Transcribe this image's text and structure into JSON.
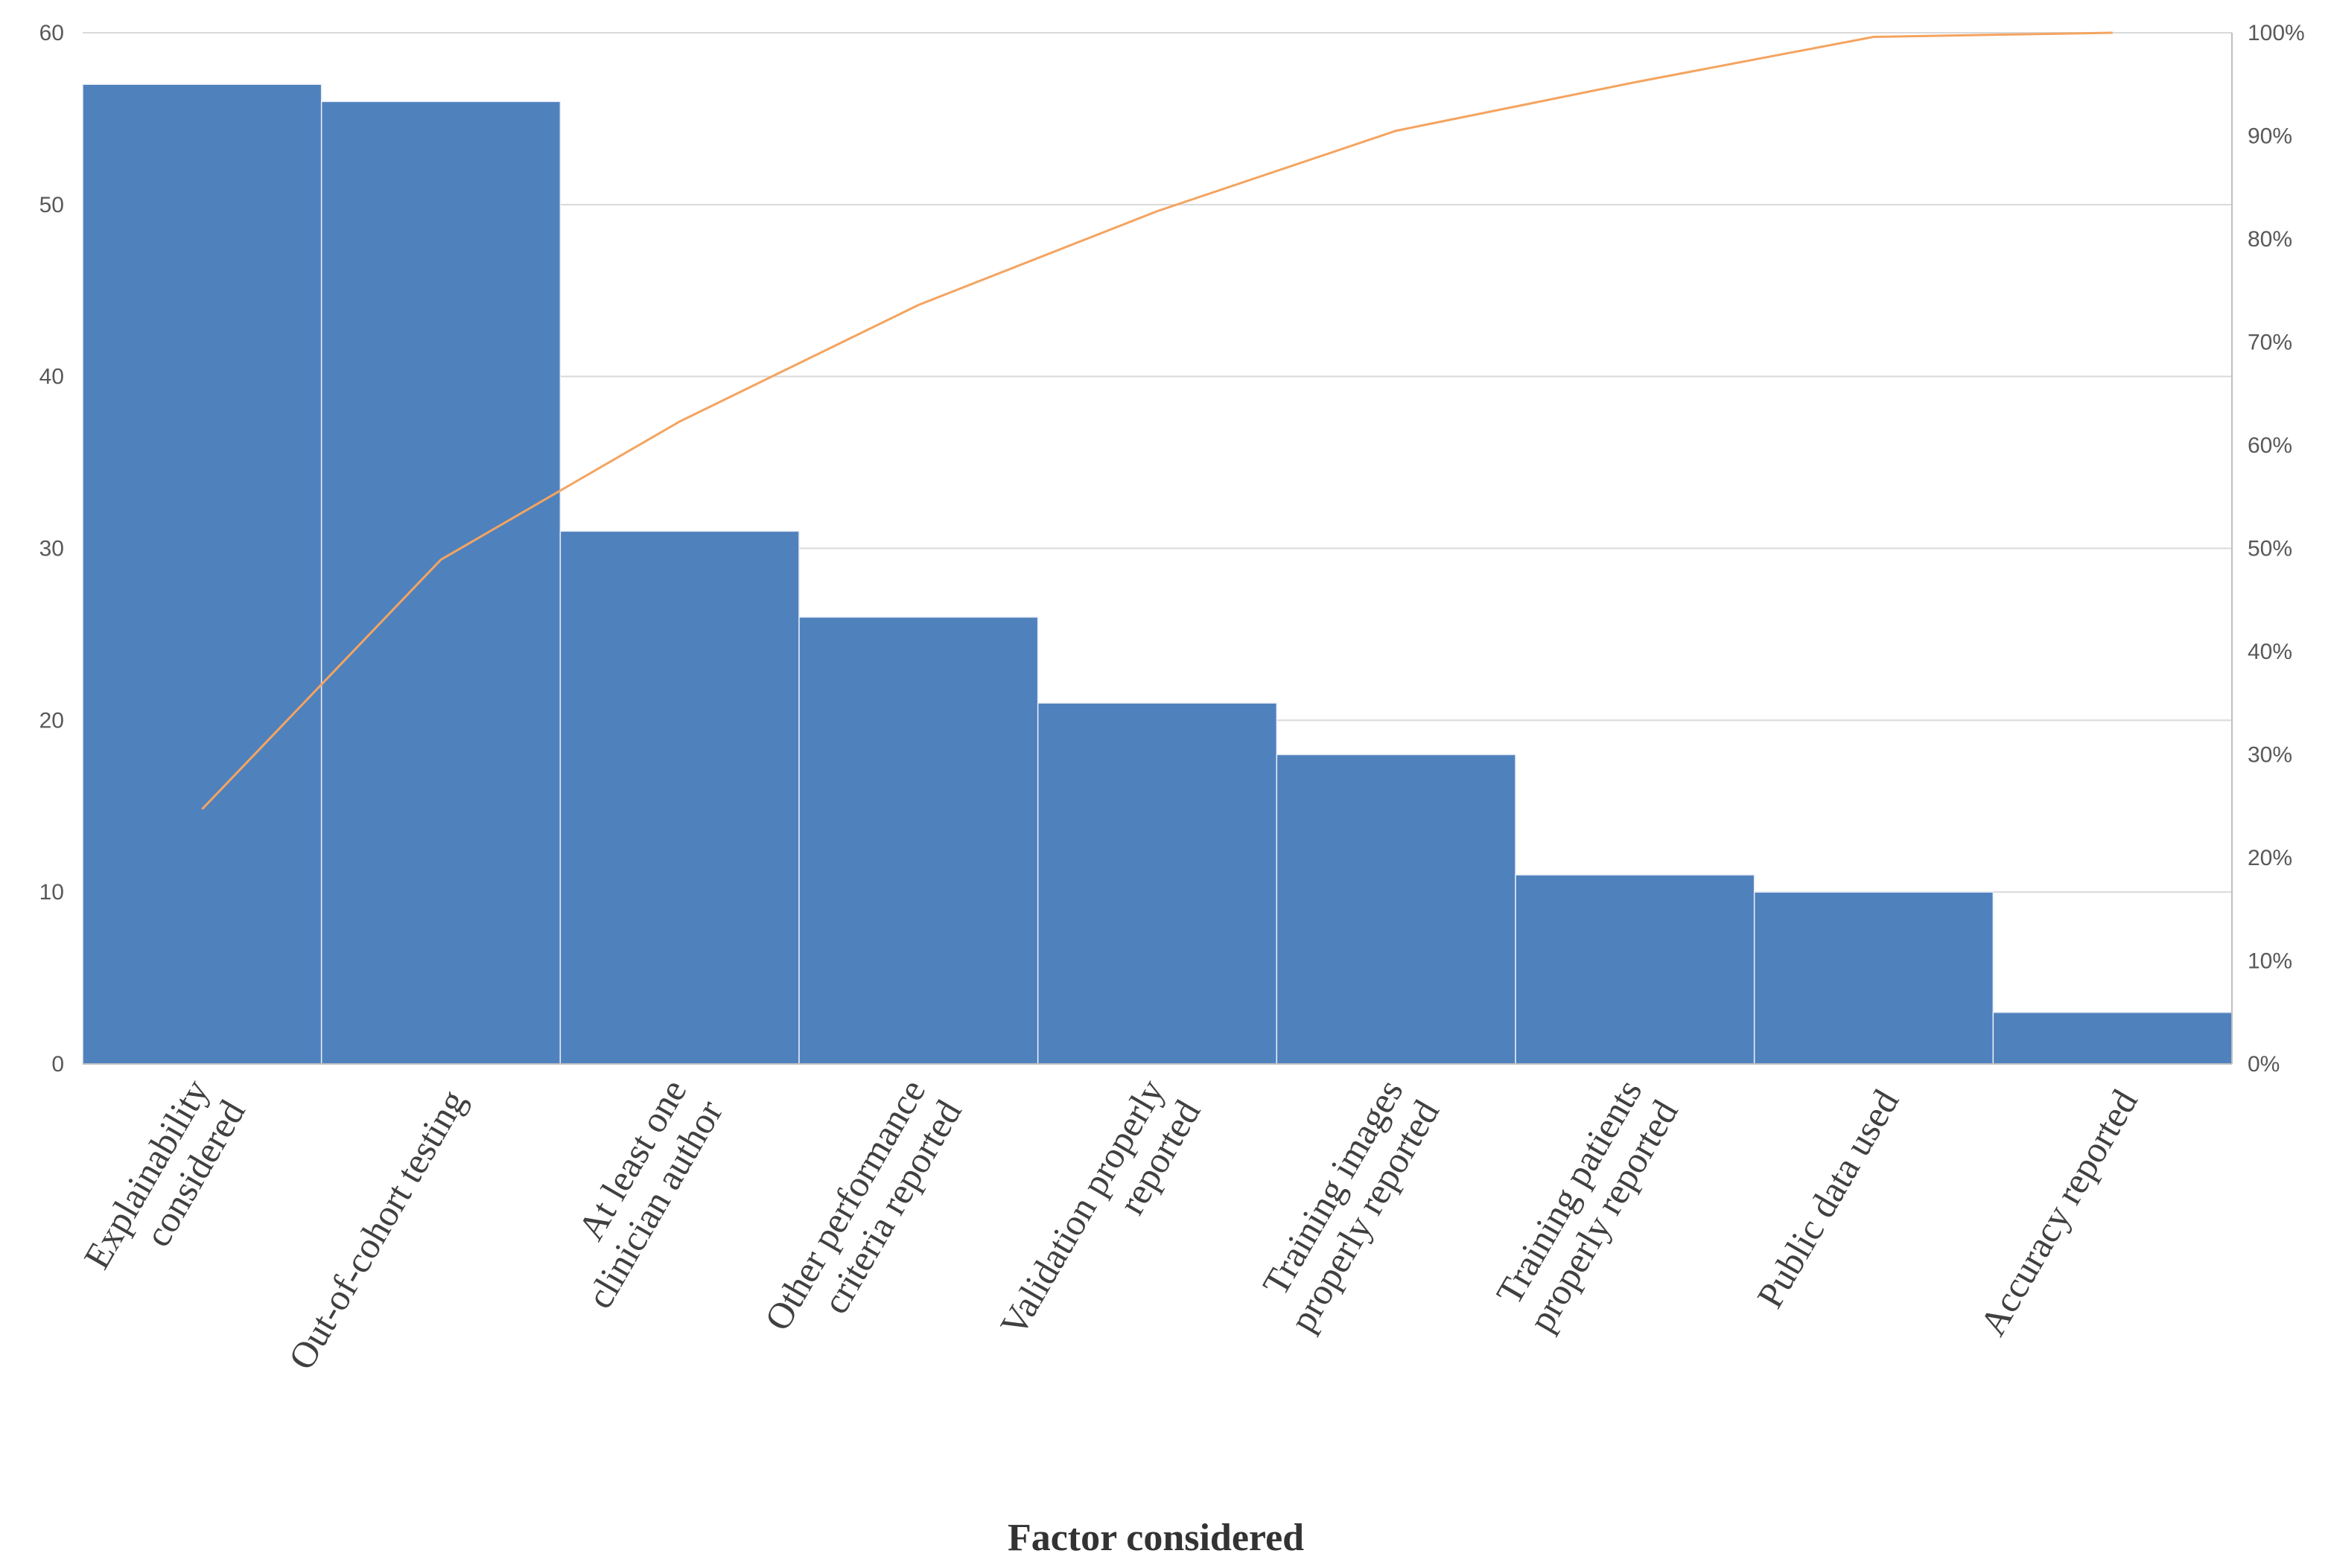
{
  "chart_data": {
    "type": "bar",
    "xlabel": "Factor considered",
    "categories": [
      [
        "Explainability",
        "considered"
      ],
      [
        "Out-of-cohort testing"
      ],
      [
        "At least one",
        "clinician author"
      ],
      [
        "Other performance",
        "criteria reported"
      ],
      [
        "Validation properly",
        "reported"
      ],
      [
        "Training images",
        "properly reported"
      ],
      [
        "Training patients",
        "properly reported"
      ],
      [
        "Public data used"
      ],
      [
        "Accuracy reported"
      ]
    ],
    "series": [
      {
        "type": "bar",
        "values": [
          57,
          56,
          31,
          26,
          21,
          18,
          11,
          10,
          3
        ],
        "color": "#4f81bd",
        "axis": "left"
      },
      {
        "type": "line",
        "values": [
          24.7,
          48.9,
          62.3,
          73.6,
          82.7,
          90.5,
          95.2,
          99.6,
          100
        ],
        "color": "#f4a460",
        "axis": "right"
      }
    ],
    "y_left": {
      "min": 0,
      "max": 60,
      "ticks": [
        "0",
        "10",
        "20",
        "30",
        "40",
        "50",
        "60"
      ]
    },
    "y_right": {
      "min": 0,
      "max": 100,
      "ticks": [
        "0%",
        "10%",
        "20%",
        "30%",
        "40%",
        "50%",
        "60%",
        "70%",
        "80%",
        "90%",
        "100%"
      ]
    },
    "grid": true,
    "legend": "none"
  }
}
